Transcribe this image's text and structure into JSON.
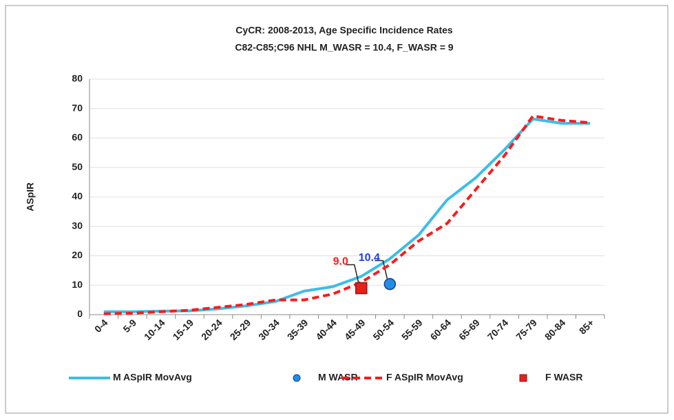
{
  "chart_data": {
    "type": "line",
    "title": "CyCR: 2008-2013, Age Specific Incidence Rates",
    "subtitle": "C82-C85;C96 NHL   M_WASR = 10.4, F_WASR = 9",
    "y_label": "ASpIR",
    "categories": [
      "0-4",
      "5-9",
      "10-14",
      "15-19",
      "20-24",
      "25-29",
      "30-34",
      "35-39",
      "40-44",
      "45-49",
      "50-54",
      "55-59",
      "60-64",
      "65-69",
      "70-74",
      "75-79",
      "80-84",
      "85+"
    ],
    "ylim": [
      0,
      80
    ],
    "yticks": [
      0,
      10,
      20,
      30,
      40,
      50,
      60,
      70,
      80
    ],
    "grid": true,
    "legend": "bottom",
    "series": [
      {
        "name": "M ASpIR MovAvg",
        "color": "#3cbde8",
        "style": "solid",
        "values": [
          1,
          1,
          1.2,
          1.3,
          2,
          3,
          4.5,
          8,
          9.5,
          13,
          19,
          27,
          39,
          46.5,
          56,
          66.5,
          65,
          65
        ]
      },
      {
        "name": "M WASR",
        "color": "#1f8fe6",
        "style": "circle",
        "values": [
          null,
          null,
          null,
          null,
          null,
          null,
          null,
          null,
          null,
          null,
          10.4,
          null,
          null,
          null,
          null,
          null,
          null,
          null
        ],
        "value_labels": [
          null,
          null,
          null,
          null,
          null,
          null,
          null,
          null,
          null,
          null,
          "10.4",
          null,
          null,
          null,
          null,
          null,
          null,
          null
        ],
        "label_color": "#1f3fe6"
      },
      {
        "name": "F ASpIR MovAvg",
        "color": "#ff1a1a",
        "style": "dashed",
        "values": [
          0.3,
          0.5,
          1,
          1.5,
          2.5,
          3.5,
          5,
          5,
          7,
          11,
          17,
          25,
          31,
          42.5,
          54,
          67.5,
          66,
          65.2
        ]
      },
      {
        "name": "F WASR",
        "color": "#e8201a",
        "style": "square",
        "values": [
          null,
          null,
          null,
          null,
          null,
          null,
          null,
          null,
          null,
          9,
          null,
          null,
          null,
          null,
          null,
          null,
          null,
          null
        ],
        "value_labels": [
          null,
          null,
          null,
          null,
          null,
          null,
          null,
          null,
          null,
          "9.0",
          null,
          null,
          null,
          null,
          null,
          null,
          null,
          null
        ],
        "label_color": "#ff1a1a"
      }
    ]
  }
}
